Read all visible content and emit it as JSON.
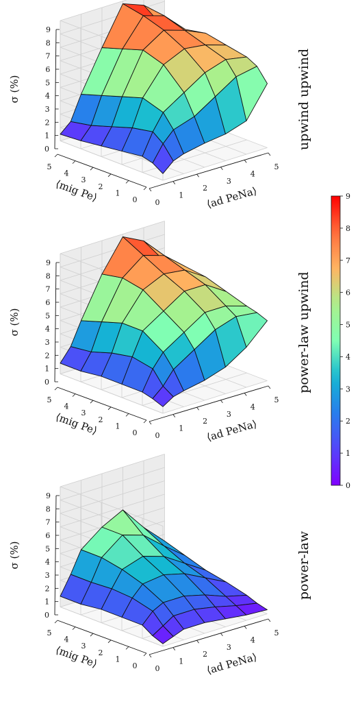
{
  "chart_data": [
    {
      "type": "surface3d",
      "panel_label": "upwind upwind",
      "zlabel": "σ (%)",
      "xlabel": "⟨ad PeNa⟩",
      "ylabel": "⟨mig Pe⟩",
      "x_ticks": [
        "0",
        "1",
        "2",
        "3",
        "4",
        "5"
      ],
      "y_ticks": [
        "5",
        "4",
        "3",
        "2",
        "1",
        "0"
      ],
      "z_ticks": [
        "0",
        "1",
        "2",
        "3",
        "4",
        "5",
        "6",
        "7",
        "8",
        "9"
      ],
      "xlim": [
        0,
        5
      ],
      "ylim": [
        0,
        5
      ],
      "zlim": [
        0,
        9
      ],
      "x": [
        0,
        0.5,
        1,
        2,
        3,
        4,
        5
      ],
      "y": [
        0,
        0.5,
        1,
        2,
        3,
        4,
        5
      ],
      "z": [
        [
          0.5,
          1.2,
          1.5,
          1.8,
          2.0,
          2.5,
          4.8
        ],
        [
          1.0,
          2.2,
          3.0,
          3.5,
          4.5,
          5.5,
          5.8
        ],
        [
          1.2,
          2.8,
          4.0,
          5.0,
          6.0,
          6.5,
          6.2
        ],
        [
          1.0,
          2.5,
          4.5,
          6.5,
          7.2,
          7.0,
          6.5
        ],
        [
          0.8,
          2.0,
          4.0,
          7.0,
          8.0,
          7.5,
          6.8
        ],
        [
          0.6,
          1.5,
          3.5,
          6.5,
          8.5,
          8.0,
          6.5
        ],
        [
          0.5,
          1.2,
          3.0,
          6.0,
          8.8,
          8.2,
          6.0
        ]
      ]
    },
    {
      "type": "surface3d",
      "panel_label": "power-law upwind",
      "zlabel": "σ (%)",
      "xlabel": "⟨ad PeNa⟩",
      "ylabel": "⟨mig Pe⟩",
      "x_ticks": [
        "0",
        "1",
        "2",
        "3",
        "4",
        "5"
      ],
      "y_ticks": [
        "5",
        "4",
        "3",
        "2",
        "1",
        "0"
      ],
      "z_ticks": [
        "0",
        "1",
        "2",
        "3",
        "4",
        "5",
        "6",
        "7",
        "8",
        "9"
      ],
      "xlim": [
        0,
        5
      ],
      "ylim": [
        0,
        5
      ],
      "zlim": [
        0,
        9
      ],
      "x": [
        0,
        0.5,
        1,
        2,
        3,
        4,
        5
      ],
      "y": [
        0,
        0.5,
        1,
        2,
        3,
        4,
        5
      ],
      "z": [
        [
          0.5,
          1.0,
          1.2,
          1.5,
          2.0,
          3.0,
          4.5
        ],
        [
          0.8,
          1.5,
          2.5,
          3.5,
          4.5,
          5.0,
          4.8
        ],
        [
          1.0,
          2.5,
          3.5,
          4.5,
          5.5,
          5.5,
          5.0
        ],
        [
          1.0,
          2.8,
          4.5,
          5.5,
          6.5,
          6.5,
          5.5
        ],
        [
          1.0,
          2.5,
          4.5,
          6.5,
          7.2,
          7.0,
          6.0
        ],
        [
          0.8,
          2.0,
          4.0,
          6.8,
          8.0,
          7.5,
          6.2
        ],
        [
          0.8,
          1.8,
          3.5,
          6.5,
          8.8,
          8.0,
          6.0
        ]
      ]
    },
    {
      "type": "surface3d",
      "panel_label": "power-law",
      "zlabel": "σ (%)",
      "xlabel": "⟨ad PeNa⟩",
      "ylabel": "⟨mig Pe⟩",
      "x_ticks": [
        "0",
        "1",
        "2",
        "3",
        "4",
        "5"
      ],
      "y_ticks": [
        "5",
        "4",
        "3",
        "2",
        "1",
        "0"
      ],
      "z_ticks": [
        "0",
        "1",
        "2",
        "3",
        "4",
        "5",
        "6",
        "7",
        "8",
        "9"
      ],
      "xlim": [
        0,
        5
      ],
      "ylim": [
        0,
        5
      ],
      "zlim": [
        0,
        9
      ],
      "x": [
        0,
        0.5,
        1,
        2,
        3,
        4,
        5
      ],
      "y": [
        0,
        0.5,
        1,
        2,
        3,
        4,
        5
      ],
      "z": [
        [
          0.2,
          0.5,
          0.8,
          0.8,
          0.6,
          0.4,
          0.3
        ],
        [
          0.5,
          1.0,
          1.5,
          1.5,
          1.2,
          0.8,
          0.5
        ],
        [
          1.0,
          1.8,
          2.2,
          2.2,
          1.8,
          1.2,
          0.8
        ],
        [
          1.0,
          2.2,
          3.0,
          3.2,
          2.8,
          2.0,
          1.2
        ],
        [
          1.0,
          2.3,
          3.5,
          4.0,
          3.5,
          2.5,
          1.5
        ],
        [
          0.8,
          2.2,
          3.8,
          5.0,
          4.5,
          3.2,
          2.0
        ],
        [
          0.8,
          2.2,
          3.8,
          5.0,
          5.8,
          4.0,
          2.5
        ]
      ]
    }
  ],
  "colorbar": {
    "ticks": [
      "0",
      "1",
      "2",
      "3",
      "4",
      "5",
      "6",
      "7",
      "8",
      "9"
    ],
    "min": 0,
    "max": 9
  }
}
